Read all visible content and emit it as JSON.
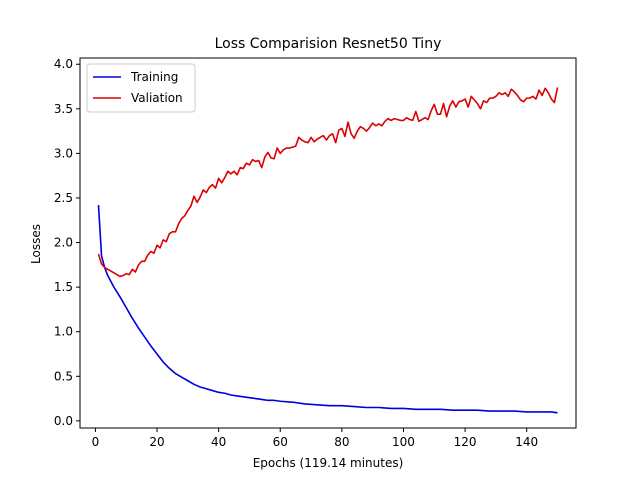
{
  "chart_data": {
    "type": "line",
    "title": "Loss Comparision Resnet50 Tiny",
    "xlabel": "Epochs (119.14 minutes)",
    "ylabel": "Losses",
    "xlim": [
      -5,
      156
    ],
    "ylim": [
      -0.08,
      4.07
    ],
    "xticks": [
      0,
      20,
      40,
      60,
      80,
      100,
      120,
      140
    ],
    "yticks": [
      0.0,
      0.5,
      1.0,
      1.5,
      2.0,
      2.5,
      3.0,
      3.5,
      4.0
    ],
    "xtick_labels": [
      "0",
      "20",
      "40",
      "60",
      "80",
      "100",
      "120",
      "140"
    ],
    "ytick_labels": [
      "0.0",
      "0.5",
      "1.0",
      "1.5",
      "2.0",
      "2.5",
      "3.0",
      "3.5",
      "4.0"
    ],
    "grid": false,
    "legend": {
      "placement": "top-left"
    },
    "series": [
      {
        "name": "Training",
        "color": "#0000dd",
        "x": [
          1,
          2,
          3,
          4,
          6,
          8,
          10,
          12,
          14,
          16,
          18,
          20,
          22,
          24,
          26,
          28,
          30,
          32,
          34,
          36,
          38,
          40,
          42,
          44,
          46,
          48,
          50,
          52,
          54,
          56,
          58,
          60,
          64,
          68,
          72,
          76,
          80,
          84,
          88,
          92,
          96,
          100,
          104,
          108,
          112,
          116,
          120,
          124,
          128,
          132,
          136,
          140,
          144,
          148,
          150
        ],
        "y": [
          2.42,
          1.85,
          1.72,
          1.63,
          1.5,
          1.39,
          1.27,
          1.15,
          1.04,
          0.94,
          0.84,
          0.75,
          0.66,
          0.59,
          0.53,
          0.49,
          0.45,
          0.41,
          0.38,
          0.36,
          0.34,
          0.32,
          0.31,
          0.29,
          0.28,
          0.27,
          0.26,
          0.25,
          0.24,
          0.23,
          0.23,
          0.22,
          0.21,
          0.19,
          0.18,
          0.17,
          0.17,
          0.16,
          0.15,
          0.15,
          0.14,
          0.14,
          0.13,
          0.13,
          0.13,
          0.12,
          0.12,
          0.12,
          0.11,
          0.11,
          0.11,
          0.1,
          0.1,
          0.1,
          0.09
        ]
      },
      {
        "name": "Valiation",
        "color": "#dd0000",
        "x": [
          1,
          2,
          3,
          4,
          5,
          6,
          7,
          8,
          9,
          10,
          11,
          12,
          13,
          14,
          15,
          16,
          17,
          18,
          19,
          20,
          21,
          22,
          23,
          24,
          25,
          26,
          27,
          28,
          29,
          30,
          31,
          32,
          33,
          34,
          35,
          36,
          37,
          38,
          39,
          40,
          41,
          42,
          43,
          44,
          45,
          46,
          47,
          48,
          49,
          50,
          51,
          52,
          53,
          54,
          55,
          56,
          57,
          58,
          59,
          60,
          61,
          62,
          63,
          64,
          65,
          66,
          67,
          68,
          69,
          70,
          71,
          72,
          73,
          74,
          75,
          76,
          77,
          78,
          79,
          80,
          81,
          82,
          83,
          84,
          85,
          86,
          87,
          88,
          89,
          90,
          91,
          92,
          93,
          94,
          95,
          96,
          97,
          98,
          99,
          100,
          101,
          102,
          103,
          104,
          105,
          106,
          107,
          108,
          109,
          110,
          111,
          112,
          113,
          114,
          115,
          116,
          117,
          118,
          119,
          120,
          121,
          122,
          123,
          124,
          125,
          126,
          127,
          128,
          129,
          130,
          131,
          132,
          133,
          134,
          135,
          136,
          137,
          138,
          139,
          140,
          141,
          142,
          143,
          144,
          145,
          146,
          147,
          148,
          149,
          150
        ],
        "y": [
          1.87,
          1.76,
          1.72,
          1.7,
          1.68,
          1.66,
          1.64,
          1.62,
          1.63,
          1.65,
          1.64,
          1.7,
          1.67,
          1.75,
          1.79,
          1.79,
          1.86,
          1.9,
          1.88,
          1.97,
          1.94,
          2.03,
          2.01,
          2.1,
          2.12,
          2.12,
          2.21,
          2.27,
          2.3,
          2.36,
          2.41,
          2.52,
          2.45,
          2.51,
          2.59,
          2.56,
          2.62,
          2.65,
          2.61,
          2.72,
          2.67,
          2.73,
          2.8,
          2.77,
          2.8,
          2.76,
          2.84,
          2.83,
          2.89,
          2.87,
          2.93,
          2.91,
          2.92,
          2.84,
          2.96,
          3.01,
          2.95,
          2.94,
          3.06,
          3.0,
          3.04,
          3.06,
          3.06,
          3.07,
          3.08,
          3.18,
          3.15,
          3.13,
          3.12,
          3.18,
          3.13,
          3.16,
          3.18,
          3.2,
          3.15,
          3.2,
          3.22,
          3.12,
          3.26,
          3.28,
          3.19,
          3.35,
          3.22,
          3.17,
          3.25,
          3.3,
          3.28,
          3.25,
          3.29,
          3.34,
          3.31,
          3.33,
          3.31,
          3.36,
          3.39,
          3.37,
          3.39,
          3.38,
          3.37,
          3.37,
          3.4,
          3.38,
          3.37,
          3.47,
          3.36,
          3.38,
          3.4,
          3.38,
          3.48,
          3.55,
          3.44,
          3.44,
          3.56,
          3.41,
          3.53,
          3.59,
          3.52,
          3.58,
          3.59,
          3.61,
          3.52,
          3.64,
          3.6,
          3.56,
          3.5,
          3.59,
          3.57,
          3.62,
          3.62,
          3.64,
          3.68,
          3.66,
          3.68,
          3.64,
          3.72,
          3.69,
          3.65,
          3.6,
          3.58,
          3.62,
          3.62,
          3.64,
          3.61,
          3.71,
          3.65,
          3.73,
          3.68,
          3.61,
          3.57,
          3.74
        ]
      }
    ]
  }
}
